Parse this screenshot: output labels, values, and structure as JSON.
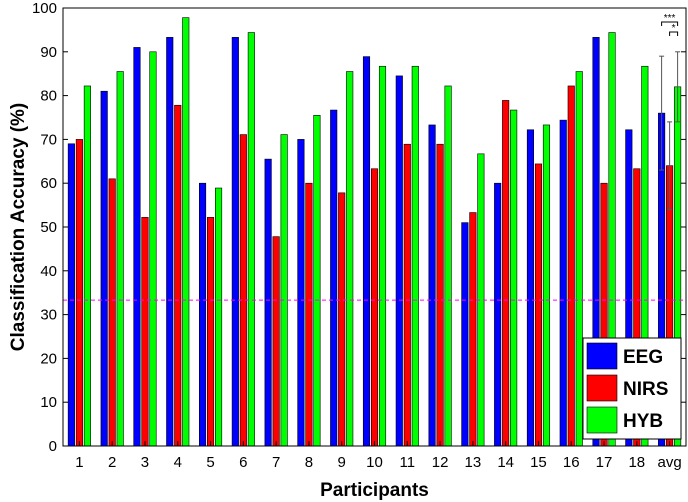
{
  "chart_data": {
    "type": "bar",
    "title": "",
    "xlabel": "Participants",
    "ylabel": "Classification Accuracy (%)",
    "ylim": [
      0,
      100
    ],
    "yticks": [
      0,
      10,
      20,
      30,
      40,
      50,
      60,
      70,
      80,
      90,
      100
    ],
    "categories": [
      "1",
      "2",
      "3",
      "4",
      "5",
      "6",
      "7",
      "8",
      "9",
      "10",
      "11",
      "12",
      "13",
      "14",
      "15",
      "16",
      "17",
      "18",
      "avg"
    ],
    "series": [
      {
        "name": "EEG",
        "color": "#0000ff",
        "values": [
          69,
          81,
          91,
          93.3,
          60,
          93.3,
          65.5,
          70,
          76.7,
          88.9,
          84.5,
          73.3,
          51,
          60,
          72.2,
          74.4,
          93.3,
          72.2,
          76
        ]
      },
      {
        "name": "NIRS",
        "color": "#ff0000",
        "values": [
          70,
          61,
          52.2,
          77.8,
          52.2,
          71.1,
          47.8,
          60,
          57.8,
          63.3,
          68.9,
          68.9,
          53.3,
          78.9,
          64.4,
          82.2,
          60,
          63.3,
          64
        ]
      },
      {
        "name": "HYB",
        "color": "#00ff00",
        "values": [
          82.2,
          85.5,
          90,
          97.8,
          58.9,
          94.4,
          71.1,
          75.5,
          85.5,
          86.7,
          86.7,
          82.2,
          66.7,
          76.7,
          73.3,
          85.5,
          94.4,
          86.7,
          82
        ]
      }
    ],
    "error_bars": {
      "category": "avg",
      "EEG": [
        63,
        89
      ],
      "NIRS": [
        54,
        74
      ],
      "HYB": [
        74,
        90
      ]
    },
    "chance_line": {
      "value": 33.3,
      "color": "#ff00ff",
      "style": "dashed"
    },
    "significance": [
      "***",
      "*"
    ],
    "legend": {
      "placement": "bottom-right",
      "entries": [
        "EEG",
        "NIRS",
        "HYB"
      ]
    },
    "grid": false
  }
}
